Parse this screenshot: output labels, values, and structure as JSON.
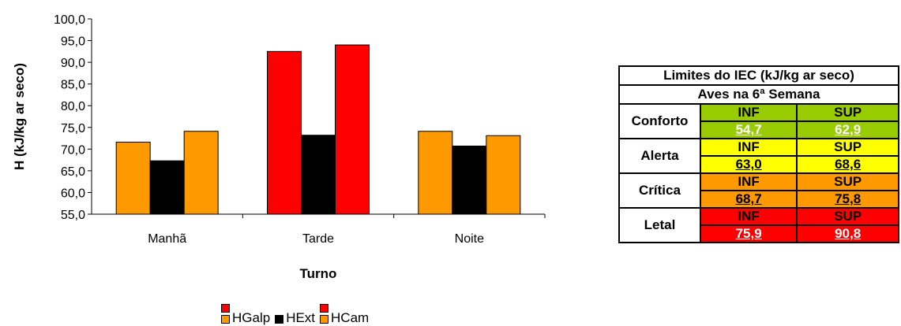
{
  "chart_data": {
    "type": "bar",
    "categories": [
      "Manhã",
      "Tarde",
      "Noite"
    ],
    "series": [
      {
        "name": "HGalp",
        "values": [
          71.6,
          92.5,
          74.1
        ],
        "colors": [
          "#ff9900",
          "#ff0000",
          "#ff9900"
        ]
      },
      {
        "name": "HExt",
        "values": [
          67.3,
          73.2,
          70.7
        ],
        "colors": [
          "#000000",
          "#000000",
          "#000000"
        ]
      },
      {
        "name": "HCam",
        "values": [
          74.1,
          94.0,
          73.1
        ],
        "colors": [
          "#ff9900",
          "#ff0000",
          "#ff9900"
        ]
      }
    ],
    "xlabel": "Turno",
    "ylabel": "H (kJ/kg ar seco)",
    "ylim": [
      55,
      100
    ],
    "yticks": [
      "55,0",
      "60,0",
      "65,0",
      "70,0",
      "75,0",
      "80,0",
      "85,0",
      "90,0",
      "95,0",
      "100,0"
    ],
    "grid": false,
    "legend_position": "bottom"
  },
  "legend": {
    "items": [
      {
        "label": "HGalp",
        "colors": [
          "#ff0000",
          "#ff9900"
        ]
      },
      {
        "label": "HExt",
        "colors": [
          "#000000"
        ]
      },
      {
        "label": "HCam",
        "colors": [
          "#ff0000",
          "#ff9900"
        ]
      }
    ]
  },
  "table": {
    "title": "Limites do IEC (kJ/kg ar seco)",
    "subtitle": "Aves na 6ª Semana",
    "inf_label": "INF",
    "sup_label": "SUP",
    "rows": [
      {
        "category": "Conforto",
        "inf": "54,7",
        "sup": "62,9",
        "color": "#99cc00"
      },
      {
        "category": "Alerta",
        "inf": "63,0",
        "sup": "68,6",
        "color": "#ffff00"
      },
      {
        "category": "Crítica",
        "inf": "68,7",
        "sup": "75,8",
        "color": "#ff9900"
      },
      {
        "category": "Letal",
        "inf": "75,9",
        "sup": "90,8",
        "color": "#ff0000"
      }
    ]
  }
}
